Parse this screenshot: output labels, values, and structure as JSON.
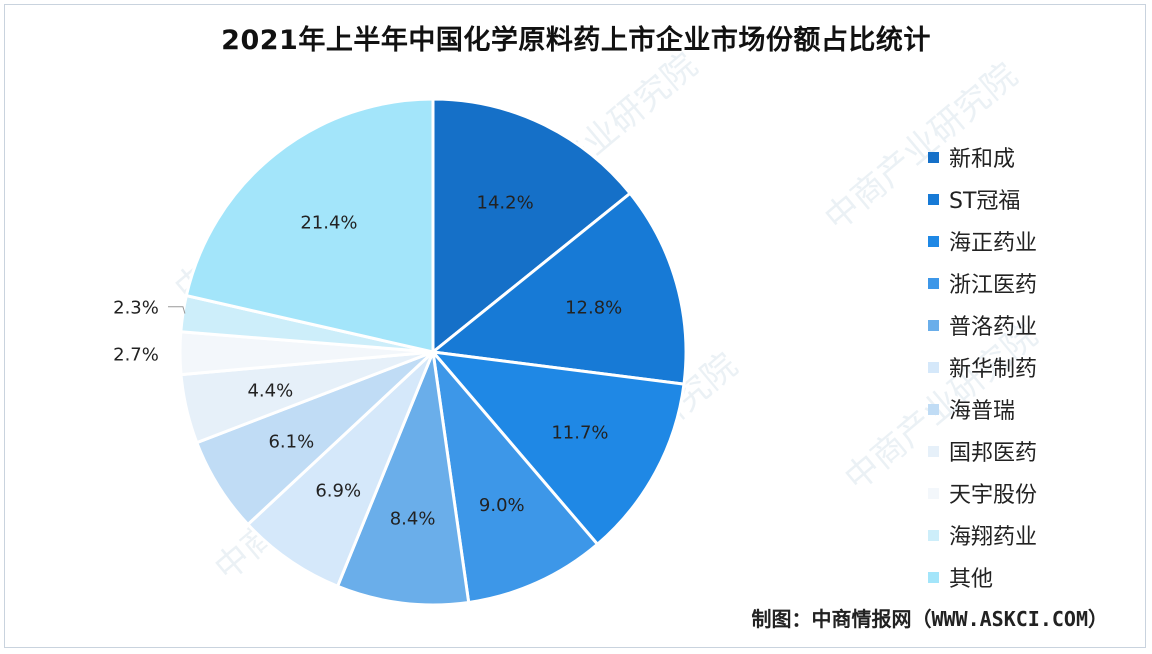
{
  "title": "2021年上半年中国化学原料药上市企业市场份额占比统计",
  "source": "制图：中商情报网（WWW.ASKCI.COM）",
  "watermark": "中商产业研究院",
  "chart_data": {
    "type": "pie",
    "title": "2021年上半年中国化学原料药上市企业市场份额占比统计",
    "unit": "%",
    "legend_position": "right",
    "slices": [
      {
        "label": "新和成",
        "value": 14.2,
        "display": "14.2%",
        "color": "#1570c8"
      },
      {
        "label": "ST冠福",
        "value": 12.8,
        "display": "12.8%",
        "color": "#177ad6"
      },
      {
        "label": "海正药业",
        "value": 11.7,
        "display": "11.7%",
        "color": "#1f88e5"
      },
      {
        "label": "浙江医药",
        "value": 9.0,
        "display": "9.0%",
        "color": "#3d97e8"
      },
      {
        "label": "普洛药业",
        "value": 8.4,
        "display": "8.4%",
        "color": "#6aaeea"
      },
      {
        "label": "新华制药",
        "value": 6.9,
        "display": "6.9%",
        "color": "#d5e8fa"
      },
      {
        "label": "海普瑞",
        "value": 6.1,
        "display": "6.1%",
        "color": "#c0dcf5"
      },
      {
        "label": "国邦医药",
        "value": 4.4,
        "display": "4.4%",
        "color": "#e6f0f9"
      },
      {
        "label": "天宇股份",
        "value": 2.7,
        "display": "2.7%",
        "color": "#f3f7fb"
      },
      {
        "label": "海翔药业",
        "value": 2.3,
        "display": "2.3%",
        "color": "#cdeefa"
      },
      {
        "label": "其他",
        "value": 21.4,
        "display": "21.4%",
        "color": "#a3e5fa"
      }
    ]
  }
}
